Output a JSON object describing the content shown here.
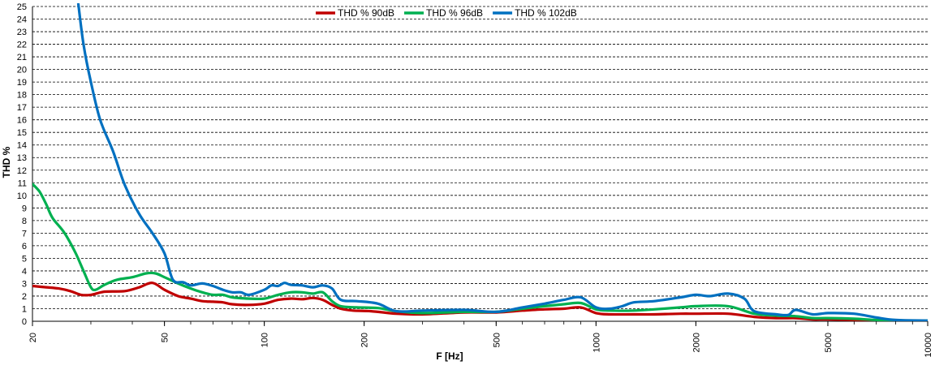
{
  "chart_data": {
    "type": "line",
    "title": "",
    "xlabel": "F [Hz]",
    "ylabel": "THD %",
    "x_scale": "log",
    "xlim": [
      20,
      10000
    ],
    "ylim": [
      0,
      25
    ],
    "x_ticks": [
      20,
      50,
      100,
      200,
      500,
      1000,
      2000,
      5000,
      10000
    ],
    "x_tick_labels": [
      "20",
      "50",
      "100",
      "200",
      "500",
      "1000",
      "2000",
      "5000",
      "10000"
    ],
    "y_ticks": [
      0,
      1,
      2,
      3,
      4,
      5,
      6,
      7,
      8,
      9,
      10,
      11,
      12,
      13,
      14,
      15,
      16,
      17,
      18,
      19,
      20,
      21,
      22,
      23,
      24,
      25
    ],
    "y_tick_labels": [
      "0",
      "1",
      "2",
      "3",
      "4",
      "5",
      "6",
      "7",
      "8",
      "9",
      "10",
      "11",
      "12",
      "13",
      "14",
      "15",
      "16",
      "17",
      "18",
      "19",
      "20",
      "21",
      "22",
      "23",
      "24",
      "25"
    ],
    "grid": "horizontal dashed",
    "legend_position": "top-center",
    "series": [
      {
        "name": "THD % 90dB",
        "color": "#c00000",
        "points": [
          [
            20,
            2.8
          ],
          [
            22,
            2.7
          ],
          [
            24,
            2.6
          ],
          [
            26,
            2.4
          ],
          [
            28,
            2.1
          ],
          [
            30,
            2.1
          ],
          [
            33,
            2.35
          ],
          [
            38,
            2.4
          ],
          [
            42,
            2.7
          ],
          [
            46,
            3.05
          ],
          [
            50,
            2.5
          ],
          [
            55,
            2.0
          ],
          [
            60,
            1.8
          ],
          [
            65,
            1.6
          ],
          [
            70,
            1.55
          ],
          [
            75,
            1.5
          ],
          [
            80,
            1.35
          ],
          [
            90,
            1.3
          ],
          [
            100,
            1.4
          ],
          [
            110,
            1.7
          ],
          [
            120,
            1.8
          ],
          [
            130,
            1.75
          ],
          [
            140,
            1.85
          ],
          [
            150,
            1.7
          ],
          [
            160,
            1.3
          ],
          [
            170,
            1.0
          ],
          [
            185,
            0.85
          ],
          [
            210,
            0.8
          ],
          [
            250,
            0.6
          ],
          [
            300,
            0.55
          ],
          [
            400,
            0.7
          ],
          [
            500,
            0.7
          ],
          [
            600,
            0.85
          ],
          [
            700,
            0.95
          ],
          [
            800,
            1.0
          ],
          [
            900,
            1.1
          ],
          [
            1000,
            0.65
          ],
          [
            1100,
            0.55
          ],
          [
            1300,
            0.55
          ],
          [
            1500,
            0.55
          ],
          [
            1800,
            0.6
          ],
          [
            2000,
            0.6
          ],
          [
            2500,
            0.6
          ],
          [
            3000,
            0.35
          ],
          [
            3500,
            0.25
          ],
          [
            4000,
            0.25
          ],
          [
            4500,
            0.15
          ],
          [
            5000,
            0.15
          ],
          [
            6000,
            0.1
          ],
          [
            7000,
            0.05
          ],
          [
            8000,
            0.03
          ],
          [
            10000,
            0.02
          ]
        ]
      },
      {
        "name": "THD % 96dB",
        "color": "#00b050",
        "points": [
          [
            20,
            10.9
          ],
          [
            21,
            10.3
          ],
          [
            22,
            9.3
          ],
          [
            23,
            8.2
          ],
          [
            25,
            7.0
          ],
          [
            27,
            5.4
          ],
          [
            28.5,
            4.0
          ],
          [
            30,
            2.7
          ],
          [
            31,
            2.5
          ],
          [
            33,
            2.9
          ],
          [
            36,
            3.3
          ],
          [
            40,
            3.5
          ],
          [
            44,
            3.8
          ],
          [
            47,
            3.8
          ],
          [
            50,
            3.5
          ],
          [
            55,
            3.0
          ],
          [
            60,
            2.6
          ],
          [
            65,
            2.3
          ],
          [
            70,
            2.1
          ],
          [
            75,
            2.1
          ],
          [
            80,
            1.9
          ],
          [
            90,
            1.8
          ],
          [
            100,
            1.8
          ],
          [
            110,
            2.1
          ],
          [
            120,
            2.3
          ],
          [
            130,
            2.3
          ],
          [
            140,
            2.2
          ],
          [
            150,
            2.3
          ],
          [
            160,
            1.6
          ],
          [
            170,
            1.2
          ],
          [
            190,
            1.1
          ],
          [
            220,
            1.05
          ],
          [
            250,
            0.8
          ],
          [
            300,
            0.65
          ],
          [
            400,
            0.75
          ],
          [
            500,
            0.75
          ],
          [
            600,
            1.0
          ],
          [
            700,
            1.2
          ],
          [
            800,
            1.35
          ],
          [
            900,
            1.45
          ],
          [
            1000,
            0.95
          ],
          [
            1100,
            0.85
          ],
          [
            1300,
            0.85
          ],
          [
            1500,
            0.95
          ],
          [
            1800,
            1.1
          ],
          [
            2000,
            1.2
          ],
          [
            2500,
            1.2
          ],
          [
            3000,
            0.6
          ],
          [
            3500,
            0.45
          ],
          [
            4000,
            0.4
          ],
          [
            4500,
            0.25
          ],
          [
            5000,
            0.25
          ],
          [
            6000,
            0.2
          ],
          [
            7000,
            0.1
          ],
          [
            8000,
            0.05
          ],
          [
            10000,
            0.05
          ]
        ]
      },
      {
        "name": "THD % 102dB",
        "color": "#0070c0",
        "points": [
          [
            27.5,
            25.2
          ],
          [
            28.5,
            22.0
          ],
          [
            30,
            19.0
          ],
          [
            32,
            16.0
          ],
          [
            35,
            13.5
          ],
          [
            38,
            10.8
          ],
          [
            42,
            8.5
          ],
          [
            46,
            7.0
          ],
          [
            50,
            5.4
          ],
          [
            53,
            3.3
          ],
          [
            57,
            3.1
          ],
          [
            60,
            2.85
          ],
          [
            65,
            3.0
          ],
          [
            70,
            2.8
          ],
          [
            75,
            2.5
          ],
          [
            80,
            2.3
          ],
          [
            85,
            2.3
          ],
          [
            90,
            2.1
          ],
          [
            100,
            2.5
          ],
          [
            105,
            2.85
          ],
          [
            110,
            2.8
          ],
          [
            115,
            3.05
          ],
          [
            120,
            2.9
          ],
          [
            130,
            2.85
          ],
          [
            140,
            2.7
          ],
          [
            150,
            2.85
          ],
          [
            160,
            2.6
          ],
          [
            170,
            1.7
          ],
          [
            190,
            1.6
          ],
          [
            220,
            1.4
          ],
          [
            250,
            0.8
          ],
          [
            300,
            0.85
          ],
          [
            400,
            0.9
          ],
          [
            500,
            0.75
          ],
          [
            600,
            1.1
          ],
          [
            700,
            1.4
          ],
          [
            800,
            1.7
          ],
          [
            900,
            1.9
          ],
          [
            1000,
            1.1
          ],
          [
            1100,
            1.0
          ],
          [
            1200,
            1.2
          ],
          [
            1300,
            1.5
          ],
          [
            1500,
            1.6
          ],
          [
            1800,
            1.9
          ],
          [
            2000,
            2.1
          ],
          [
            2200,
            2.0
          ],
          [
            2500,
            2.2
          ],
          [
            2800,
            1.8
          ],
          [
            3000,
            0.8
          ],
          [
            3500,
            0.55
          ],
          [
            3800,
            0.5
          ],
          [
            4000,
            0.9
          ],
          [
            4500,
            0.55
          ],
          [
            5000,
            0.65
          ],
          [
            6000,
            0.6
          ],
          [
            7000,
            0.3
          ],
          [
            8000,
            0.1
          ],
          [
            10000,
            0.05
          ]
        ]
      }
    ]
  }
}
